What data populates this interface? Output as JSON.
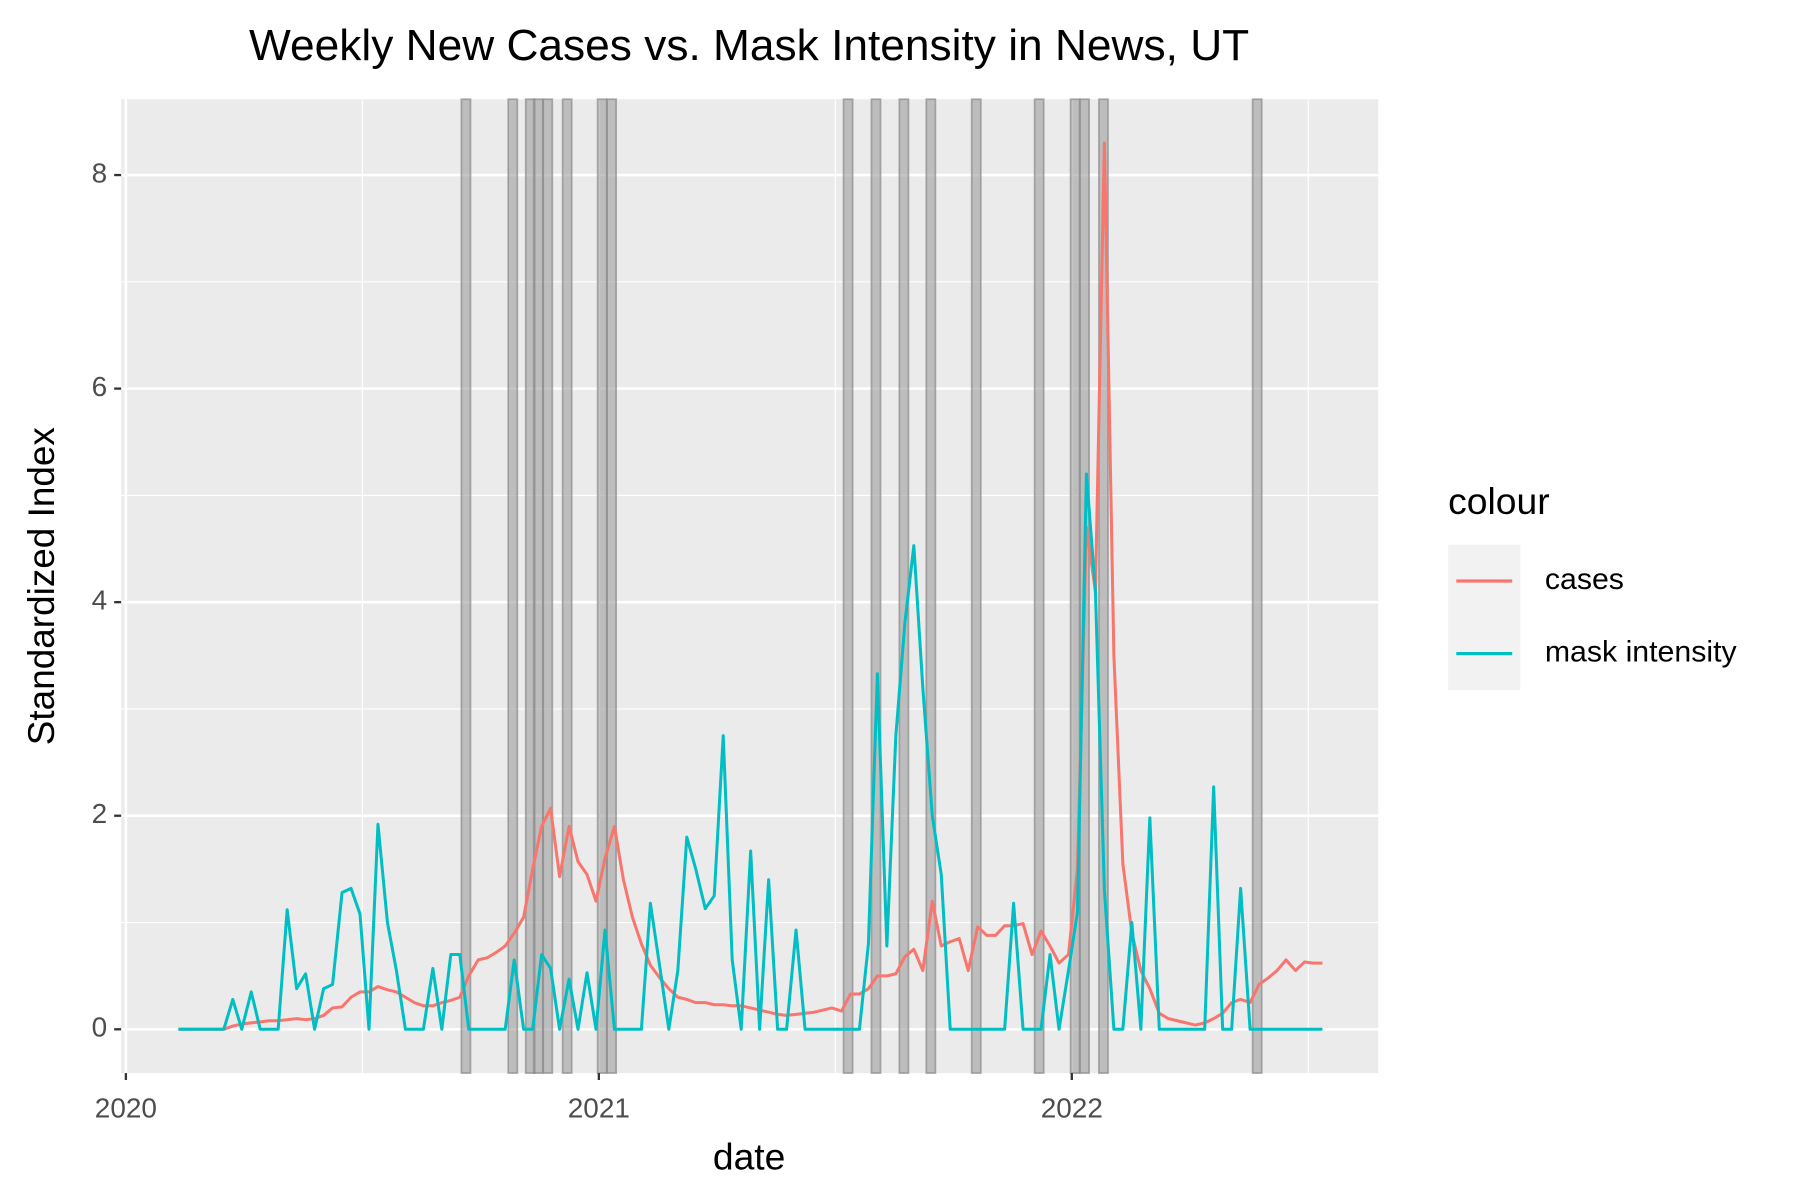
{
  "chart_data": {
    "type": "line",
    "title": "Weekly New Cases vs. Mask Intensity in News, UT",
    "x_label": "date",
    "y_label": "Standardized Index",
    "legend_title": "colour",
    "legend": "right",
    "grid": true,
    "xlim": [
      2019.99,
      2022.648
    ],
    "xticks": [
      2020,
      2021,
      2022
    ],
    "ylim": [
      -0.41,
      8.71
    ],
    "yticks": [
      0,
      2,
      4,
      6,
      8
    ],
    "shaded_weeks": [
      2020.719,
      2020.818,
      2020.855,
      2020.872,
      2020.892,
      2020.933,
      2021.007,
      2021.027,
      2021.527,
      2021.586,
      2021.645,
      2021.702,
      2021.798,
      2021.931,
      2022.007,
      2022.027,
      2022.067,
      2022.392
    ],
    "x": [
      2020.111,
      2020.13,
      2020.149,
      2020.169,
      2020.188,
      2020.207,
      2020.226,
      2020.245,
      2020.265,
      2020.284,
      2020.303,
      2020.322,
      2020.341,
      2020.361,
      2020.38,
      2020.399,
      2020.418,
      2020.437,
      2020.457,
      2020.476,
      2020.495,
      2020.514,
      2020.533,
      2020.553,
      2020.572,
      2020.591,
      2020.61,
      2020.629,
      2020.649,
      2020.668,
      2020.687,
      2020.706,
      2020.725,
      2020.745,
      2020.764,
      2020.783,
      2020.802,
      2020.821,
      2020.841,
      2020.86,
      2020.879,
      2020.898,
      2020.917,
      2020.937,
      2020.956,
      2020.975,
      2020.994,
      2021.013,
      2021.033,
      2021.052,
      2021.071,
      2021.09,
      2021.109,
      2021.129,
      2021.148,
      2021.167,
      2021.186,
      2021.205,
      2021.225,
      2021.244,
      2021.263,
      2021.282,
      2021.301,
      2021.321,
      2021.34,
      2021.359,
      2021.378,
      2021.397,
      2021.417,
      2021.436,
      2021.455,
      2021.474,
      2021.493,
      2021.513,
      2021.532,
      2021.551,
      2021.57,
      2021.589,
      2021.609,
      2021.628,
      2021.647,
      2021.666,
      2021.685,
      2021.705,
      2021.724,
      2021.743,
      2021.762,
      2021.781,
      2021.801,
      2021.82,
      2021.839,
      2021.858,
      2021.877,
      2021.897,
      2021.916,
      2021.935,
      2021.954,
      2021.973,
      2021.993,
      2022.012,
      2022.031,
      2022.05,
      2022.069,
      2022.089,
      2022.108,
      2022.127,
      2022.146,
      2022.165,
      2022.185,
      2022.204,
      2022.223,
      2022.242,
      2022.261,
      2022.281,
      2022.3,
      2022.319,
      2022.338,
      2022.357,
      2022.377,
      2022.396,
      2022.415,
      2022.434,
      2022.453,
      2022.473,
      2022.492,
      2022.511,
      2022.53
    ],
    "series": [
      {
        "name": "cases",
        "color": "#F8766D",
        "values": [
          0,
          0,
          0,
          0,
          0,
          0,
          0.03,
          0.05,
          0.06,
          0.07,
          0.08,
          0.08,
          0.09,
          0.1,
          0.09,
          0.1,
          0.13,
          0.2,
          0.21,
          0.3,
          0.35,
          0.35,
          0.4,
          0.37,
          0.35,
          0.3,
          0.25,
          0.22,
          0.22,
          0.25,
          0.27,
          0.3,
          0.5,
          0.65,
          0.67,
          0.72,
          0.78,
          0.9,
          1.05,
          1.5,
          1.9,
          2.07,
          1.43,
          1.9,
          1.57,
          1.45,
          1.2,
          1.6,
          1.9,
          1.4,
          1.05,
          0.8,
          0.6,
          0.48,
          0.38,
          0.3,
          0.28,
          0.25,
          0.25,
          0.23,
          0.23,
          0.22,
          0.22,
          0.2,
          0.18,
          0.16,
          0.14,
          0.13,
          0.14,
          0.15,
          0.16,
          0.18,
          0.2,
          0.17,
          0.33,
          0.33,
          0.38,
          0.5,
          0.5,
          0.52,
          0.68,
          0.75,
          0.55,
          1.2,
          0.78,
          0.82,
          0.85,
          0.55,
          0.96,
          0.88,
          0.88,
          0.97,
          0.97,
          0.99,
          0.7,
          0.92,
          0.78,
          0.62,
          0.7,
          1.5,
          4.7,
          4.1,
          8.3,
          3.5,
          1.55,
          0.9,
          0.55,
          0.38,
          0.15,
          0.1,
          0.08,
          0.06,
          0.04,
          0.06,
          0.1,
          0.15,
          0.25,
          0.28,
          0.25,
          0.42,
          0.48,
          0.55,
          0.65,
          0.55,
          0.63,
          0.62,
          0.62
        ]
      },
      {
        "name": "mask intensity",
        "color": "#00BFC4",
        "values": [
          0,
          0,
          0,
          0,
          0,
          0,
          0.28,
          0,
          0.35,
          0,
          0,
          0,
          1.12,
          0.38,
          0.52,
          0,
          0.38,
          0.42,
          1.28,
          1.32,
          1.08,
          0,
          1.92,
          1.0,
          0.55,
          0,
          0,
          0,
          0.57,
          0,
          0.7,
          0.7,
          0,
          0,
          0,
          0,
          0,
          0.65,
          0,
          0,
          0.7,
          0.57,
          0,
          0.47,
          0,
          0.53,
          0,
          0.93,
          0,
          0,
          0,
          0,
          1.18,
          0.58,
          0,
          0.55,
          1.8,
          1.5,
          1.13,
          1.25,
          2.75,
          0.65,
          0,
          1.67,
          0,
          1.4,
          0,
          0,
          0.93,
          0,
          0,
          0,
          0,
          0,
          0,
          0,
          0.8,
          3.33,
          0.78,
          2.75,
          3.8,
          4.53,
          3.2,
          2.0,
          1.45,
          0,
          0,
          0,
          0,
          0,
          0,
          0,
          1.18,
          0,
          0,
          0,
          0.7,
          0,
          0.55,
          1.1,
          5.2,
          4.1,
          1.3,
          0,
          0,
          1.0,
          0,
          1.98,
          0,
          0,
          0,
          0,
          0,
          0,
          2.27,
          0,
          0,
          1.32,
          0,
          0,
          0,
          0,
          0,
          0,
          0,
          0,
          0
        ]
      }
    ]
  }
}
